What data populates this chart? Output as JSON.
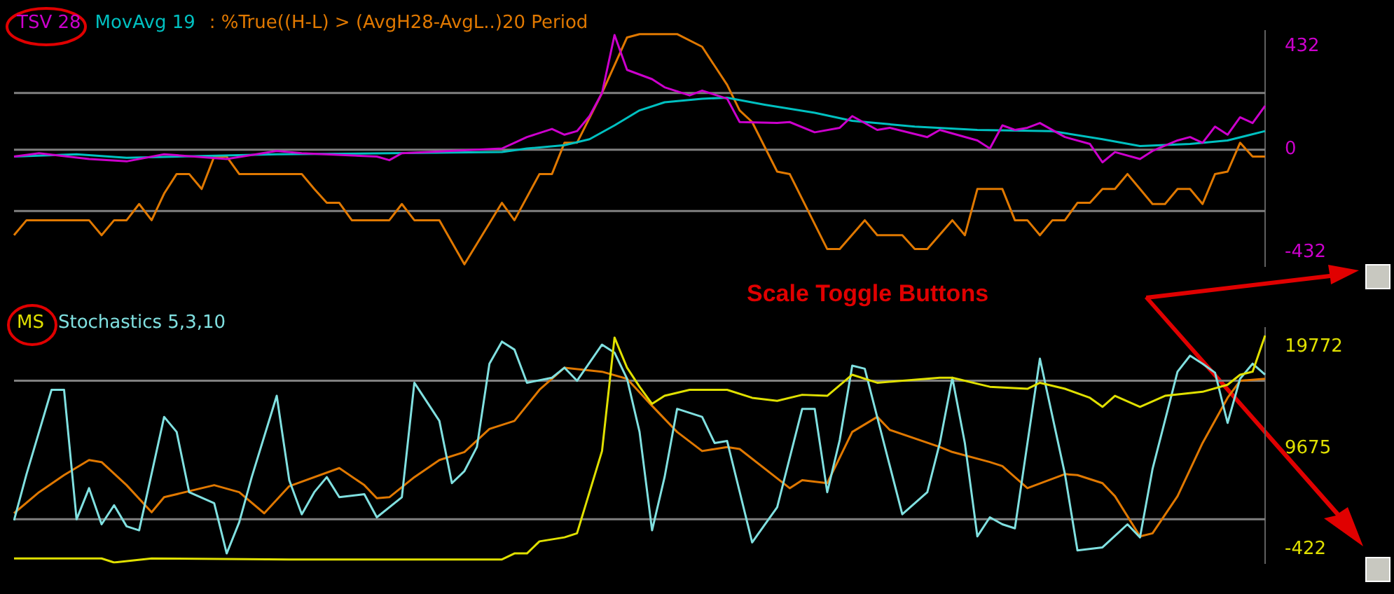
{
  "chart_data": [
    {
      "type": "line",
      "legend": "top left",
      "tick_labels": "y",
      "marker": "none",
      "categories": [
        null,
        null,
        null,
        null,
        null,
        null,
        null,
        null,
        null,
        null,
        null,
        null,
        null,
        null,
        null,
        null,
        null,
        null,
        null,
        null,
        null,
        null,
        null,
        null,
        null,
        null,
        null,
        null,
        null,
        null,
        null,
        null,
        null,
        null,
        null,
        null,
        null,
        null,
        null,
        null,
        null,
        null,
        null,
        null,
        null,
        null,
        null,
        null,
        null,
        null,
        null,
        null,
        null,
        null,
        null,
        null,
        null,
        null,
        null,
        null,
        null,
        null,
        null,
        null,
        null,
        null,
        null,
        null,
        null,
        null,
        null,
        null,
        null,
        null,
        null,
        null,
        null,
        null,
        null,
        null,
        null,
        null,
        null,
        null,
        null,
        null,
        null,
        null,
        null,
        null,
        null,
        null,
        null,
        null,
        null,
        null,
        null,
        null,
        null,
        null,
        null
      ],
      "ylim": [
        -490,
        500
      ],
      "yticks": [
        -432,
        0,
        432
      ],
      "ref_lines": [
        {
          "axis": "y",
          "value": 238,
          "color": "#808080"
        },
        {
          "axis": "y",
          "value": 0,
          "color": "#808080"
        },
        {
          "axis": "y",
          "value": -257,
          "color": "#808080"
        }
      ],
      "series": [
        {
          "name": "TSV 28",
          "color": "#cc00cc",
          "values": [
            -29,
            null,
            -15,
            null,
            null,
            null,
            -39,
            null,
            null,
            -49,
            null,
            null,
            -19,
            null,
            null,
            null,
            null,
            -39,
            null,
            null,
            null,
            -5,
            null,
            -15,
            null,
            null,
            null,
            null,
            null,
            -29,
            -44,
            -15,
            null,
            null,
            null,
            null,
            null,
            null,
            null,
            5,
            29,
            53,
            null,
            87,
            63,
            78,
            141,
            238,
            481,
            335,
            null,
            296,
            262,
            null,
            228,
            248,
            null,
            214,
            116,
            null,
            null,
            112,
            116,
            null,
            73,
            null,
            92,
            141,
            null,
            83,
            92,
            null,
            null,
            53,
            83,
            null,
            null,
            39,
            5,
            102,
            83,
            92,
            112,
            null,
            53,
            null,
            24,
            -53,
            -10,
            null,
            -39,
            -5,
            null,
            39,
            53,
            29,
            97,
            63,
            136,
            112,
            184
          ]
        },
        {
          "name": "MovAvg 19",
          "color": "#00c0c0",
          "values": [
            -29,
            null,
            null,
            null,
            null,
            -19,
            null,
            null,
            null,
            -34,
            null,
            null,
            null,
            null,
            null,
            null,
            null,
            null,
            null,
            null,
            null,
            -19,
            null,
            null,
            null,
            null,
            null,
            null,
            null,
            null,
            -15,
            null,
            null,
            null,
            null,
            null,
            null,
            null,
            null,
            -10,
            null,
            5,
            null,
            null,
            19,
            null,
            44,
            null,
            102,
            null,
            165,
            null,
            199,
            null,
            null,
            214,
            null,
            218,
            null,
            null,
            189,
            null,
            null,
            null,
            155,
            null,
            null,
            121,
            null,
            null,
            null,
            null,
            97,
            null,
            null,
            null,
            null,
            83,
            null,
            null,
            null,
            null,
            null,
            78,
            null,
            null,
            null,
            44,
            null,
            null,
            15,
            null,
            null,
            null,
            24,
            null,
            null,
            39,
            null,
            null,
            78
          ]
        },
        {
          "name": ": %True((H-L) > (AvgH28-AvgL..)20 Period",
          "color": "#e07800",
          "values": [
            -359,
            -296,
            null,
            null,
            null,
            null,
            -296,
            -359,
            -296,
            -296,
            -228,
            -296,
            -184,
            -102,
            -102,
            -165,
            -29,
            -29,
            -102,
            null,
            null,
            null,
            null,
            -102,
            -165,
            -223,
            -223,
            -296,
            null,
            null,
            -296,
            -228,
            -296,
            null,
            -296,
            null,
            -481,
            null,
            null,
            -223,
            -296,
            null,
            -102,
            -102,
            29,
            29,
            null,
            238,
            null,
            471,
            485,
            null,
            null,
            485,
            null,
            432,
            null,
            272,
            165,
            116,
            null,
            -92,
            -102,
            null,
            null,
            -417,
            -417,
            null,
            -296,
            -359,
            null,
            -359,
            -417,
            -417,
            null,
            -296,
            -359,
            -165,
            null,
            -165,
            -296,
            -296,
            -359,
            -296,
            -296,
            -223,
            -223,
            -165,
            -165,
            -102,
            -165,
            -228,
            -228,
            -165,
            -165,
            -228,
            -102,
            -92,
            29,
            -29,
            -29
          ]
        }
      ]
    },
    {
      "type": "line",
      "legend": "top left",
      "tick_labels": "y",
      "marker": "none",
      "annotations": [
        "Scale Toggle Buttons"
      ],
      "categories": [
        null,
        null,
        null,
        null,
        null,
        null,
        null,
        null,
        null,
        null,
        null,
        null,
        null,
        null,
        null,
        null,
        null,
        null,
        null,
        null,
        null,
        null,
        null,
        null,
        null,
        null,
        null,
        null,
        null,
        null,
        null,
        null,
        null,
        null,
        null,
        null,
        null,
        null,
        null,
        null,
        null,
        null,
        null,
        null,
        null,
        null,
        null,
        null,
        null,
        null,
        null,
        null,
        null,
        null,
        null,
        null,
        null,
        null,
        null,
        null,
        null,
        null,
        null,
        null,
        null,
        null,
        null,
        null,
        null,
        null,
        null,
        null,
        null,
        null,
        null,
        null,
        null,
        null,
        null,
        null,
        null,
        null,
        null,
        null,
        null,
        null,
        null,
        null,
        null,
        null,
        null,
        null,
        null,
        null,
        null,
        null,
        null,
        null,
        null,
        null,
        null
      ],
      "ylim": [
        -1800,
        21700
      ],
      "yticks": [
        -422,
        9675,
        19772
      ],
      "ref_lines": [
        {
          "axis": "y",
          "value": 16400,
          "color": "#808080"
        },
        {
          "axis": "y",
          "value": 2600,
          "color": "#808080"
        }
      ],
      "series": [
        {
          "name": "MS",
          "color": "#e0e000",
          "values": [
            -1300,
            null,
            null,
            null,
            null,
            null,
            null,
            -1300,
            -1700,
            null,
            null,
            -1300,
            null,
            null,
            null,
            null,
            null,
            null,
            null,
            null,
            null,
            null,
            -1400,
            null,
            null,
            null,
            null,
            null,
            null,
            null,
            null,
            null,
            null,
            null,
            null,
            null,
            null,
            null,
            null,
            -1400,
            -800,
            -800,
            400,
            null,
            800,
            1200,
            5300,
            9400,
            20700,
            17700,
            15800,
            14100,
            14900,
            null,
            15500,
            15500,
            null,
            15500,
            null,
            14700,
            null,
            14400,
            null,
            15000,
            null,
            14900,
            null,
            17000,
            null,
            16200,
            null,
            null,
            null,
            null,
            16700,
            16700,
            null,
            null,
            15800,
            null,
            null,
            15600,
            16200,
            null,
            15600,
            null,
            14700,
            13800,
            14900,
            null,
            13800,
            null,
            14900,
            null,
            null,
            15300,
            null,
            16000,
            17000,
            17300,
            20900
          ]
        },
        {
          "name": "Stochastics 5,3,10",
          "color": "#80e0e0",
          "values": [
            2500,
            7100,
            null,
            15500,
            15500,
            2600,
            5700,
            2100,
            4000,
            1900,
            1500,
            null,
            12800,
            11300,
            5300,
            null,
            4200,
            -800,
            2300,
            6800,
            null,
            14900,
            6500,
            3100,
            5300,
            6800,
            4800,
            null,
            5100,
            2800,
            null,
            4800,
            16200,
            null,
            12400,
            6200,
            7400,
            9800,
            18100,
            20300,
            19500,
            16200,
            null,
            16700,
            17700,
            16400,
            null,
            20000,
            19200,
            16600,
            11300,
            1500,
            6800,
            13600,
            null,
            12800,
            10200,
            10400,
            null,
            300,
            null,
            3800,
            null,
            13600,
            13600,
            5300,
            10500,
            17900,
            17600,
            null,
            null,
            3100,
            null,
            5300,
            10200,
            16700,
            10200,
            900,
            2800,
            2100,
            1700,
            null,
            18600,
            null,
            7100,
            -500,
            null,
            -200,
            null,
            2100,
            800,
            7600,
            null,
            17300,
            18900,
            18100,
            17200,
            12200,
            16600,
            18100,
            17000
          ]
        },
        {
          "color": "#e07800",
          "values": [
            3200,
            null,
            5300,
            null,
            7000,
            null,
            8500,
            8300,
            null,
            6000,
            null,
            3300,
            4800,
            null,
            null,
            null,
            6000,
            null,
            5300,
            null,
            3200,
            null,
            5900,
            null,
            null,
            null,
            7700,
            null,
            6000,
            4700,
            4800,
            null,
            6800,
            null,
            8500,
            null,
            9300,
            null,
            11600,
            null,
            12400,
            null,
            15500,
            null,
            17700,
            null,
            null,
            17300,
            null,
            16600,
            null,
            13900,
            null,
            11300,
            null,
            9400,
            null,
            9800,
            9600,
            null,
            null,
            null,
            5700,
            6500,
            null,
            6200,
            null,
            11300,
            null,
            12800,
            11500,
            null,
            null,
            null,
            9800,
            9300,
            null,
            null,
            8300,
            7900,
            null,
            5700,
            null,
            null,
            7100,
            7000,
            null,
            6200,
            4900,
            null,
            900,
            1200,
            null,
            4900,
            null,
            10200,
            null,
            14700,
            16400,
            null,
            16600
          ]
        }
      ]
    }
  ]
}
